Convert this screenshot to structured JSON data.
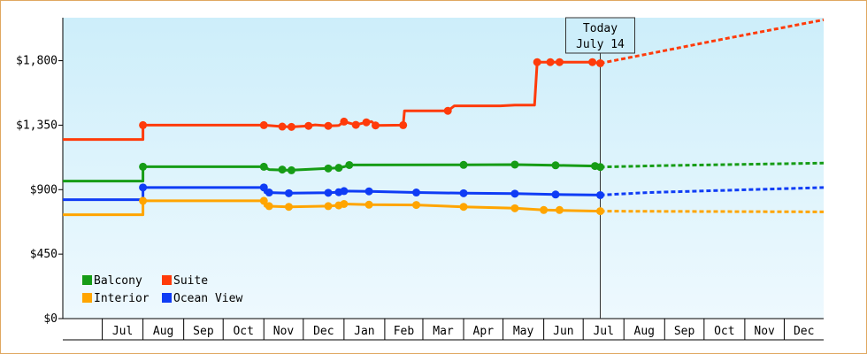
{
  "chart_data": {
    "type": "line",
    "title": "",
    "xlabel": "",
    "ylabel": "",
    "x_axis": {
      "type": "date",
      "range": [
        "2023-06-01",
        "2024-12-31"
      ]
    },
    "ylim": [
      0,
      2100
    ],
    "yticks": [
      0,
      450,
      900,
      1350,
      1800
    ],
    "ytick_labels": [
      "$0",
      "$450",
      "$900",
      "$1,350",
      "$1,800"
    ],
    "x_tick_labels": [
      {
        "date": "2023-07-01",
        "label": "Jul"
      },
      {
        "date": "2023-08-01",
        "label": "Aug"
      },
      {
        "date": "2023-09-01",
        "label": "Sep"
      },
      {
        "date": "2023-10-01",
        "label": "Oct"
      },
      {
        "date": "2023-11-01",
        "label": "Nov"
      },
      {
        "date": "2023-12-01",
        "label": "Dec"
      },
      {
        "date": "2024-01-01",
        "label": "Jan"
      },
      {
        "date": "2024-02-01",
        "label": "Feb"
      },
      {
        "date": "2024-03-01",
        "label": "Mar"
      },
      {
        "date": "2024-04-01",
        "label": "Apr"
      },
      {
        "date": "2024-05-01",
        "label": "May"
      },
      {
        "date": "2024-06-01",
        "label": "Jun"
      },
      {
        "date": "2024-07-01",
        "label": "Jul"
      },
      {
        "date": "2024-08-01",
        "label": "Aug"
      },
      {
        "date": "2024-09-01",
        "label": "Sep"
      },
      {
        "date": "2024-10-01",
        "label": "Oct"
      },
      {
        "date": "2024-11-01",
        "label": "Nov"
      },
      {
        "date": "2024-12-01",
        "label": "Dec"
      }
    ],
    "grid": false,
    "legend": {
      "placement": "bottom-left",
      "entries": [
        {
          "name": "Balcony",
          "color": "#169c16"
        },
        {
          "name": "Suite",
          "color": "#ff3b0a"
        },
        {
          "name": "Interior",
          "color": "#ffa500"
        },
        {
          "name": "Ocean View",
          "color": "#0f3cf5"
        }
      ]
    },
    "today": {
      "date": "2024-07-14",
      "label_line1": "Today",
      "label_line2": "July 14"
    },
    "series": [
      {
        "name": "Suite",
        "color": "#ff3b0a",
        "history": [
          [
            "2023-06-01",
            1250
          ],
          [
            "2023-08-01",
            1250
          ],
          [
            "2023-08-01",
            1350
          ],
          [
            "2023-11-01",
            1350
          ],
          [
            "2023-11-15",
            1340
          ],
          [
            "2023-11-22",
            1338
          ],
          [
            "2023-12-05",
            1345
          ],
          [
            "2023-12-10",
            1352
          ],
          [
            "2023-12-20",
            1345
          ],
          [
            "2023-12-28",
            1348
          ],
          [
            "2024-01-01",
            1375
          ],
          [
            "2024-01-10",
            1352
          ],
          [
            "2024-01-18",
            1370
          ],
          [
            "2024-01-22",
            1375
          ],
          [
            "2024-01-25",
            1348
          ],
          [
            "2024-02-15",
            1350
          ],
          [
            "2024-02-16",
            1450
          ],
          [
            "2024-03-20",
            1450
          ],
          [
            "2024-03-25",
            1485
          ],
          [
            "2024-04-29",
            1485
          ],
          [
            "2024-05-10",
            1490
          ],
          [
            "2024-05-25",
            1490
          ],
          [
            "2024-05-27",
            1790
          ],
          [
            "2024-06-06",
            1790
          ],
          [
            "2024-06-13",
            1790
          ],
          [
            "2024-07-08",
            1790
          ],
          [
            "2024-07-14",
            1782
          ]
        ],
        "projection": [
          [
            "2024-07-14",
            1782
          ],
          [
            "2024-09-01",
            1870
          ],
          [
            "2024-10-15",
            1950
          ],
          [
            "2024-12-31",
            2085
          ]
        ],
        "markers": [
          "2023-08-01",
          "2023-11-01",
          "2023-11-15",
          "2023-11-22",
          "2023-12-05",
          "2023-12-20",
          "2024-01-01",
          "2024-01-10",
          "2024-01-18",
          "2024-01-25",
          "2024-02-15",
          "2024-03-20",
          "2024-05-27",
          "2024-06-06",
          "2024-06-13",
          "2024-07-08",
          "2024-07-14"
        ]
      },
      {
        "name": "Balcony",
        "color": "#169c16",
        "history": [
          [
            "2023-06-01",
            960
          ],
          [
            "2023-08-01",
            960
          ],
          [
            "2023-08-01",
            1060
          ],
          [
            "2023-11-01",
            1060
          ],
          [
            "2023-11-05",
            1040
          ],
          [
            "2023-11-20",
            1035
          ],
          [
            "2023-12-01",
            1040
          ],
          [
            "2023-12-20",
            1048
          ],
          [
            "2023-12-28",
            1052
          ],
          [
            "2024-01-01",
            1060
          ],
          [
            "2024-01-05",
            1072
          ],
          [
            "2024-04-01",
            1073
          ],
          [
            "2024-05-10",
            1075
          ],
          [
            "2024-06-10",
            1070
          ],
          [
            "2024-07-10",
            1065
          ],
          [
            "2024-07-14",
            1058
          ]
        ],
        "projection": [
          [
            "2024-07-14",
            1058
          ],
          [
            "2024-09-01",
            1068
          ],
          [
            "2024-12-31",
            1085
          ]
        ],
        "markers": [
          "2023-08-01",
          "2023-11-01",
          "2023-11-15",
          "2023-11-22",
          "2023-12-20",
          "2023-12-28",
          "2024-01-05",
          "2024-04-01",
          "2024-05-10",
          "2024-06-10",
          "2024-07-10",
          "2024-07-14"
        ]
      },
      {
        "name": "Ocean View",
        "color": "#0f3cf5",
        "history": [
          [
            "2023-06-01",
            830
          ],
          [
            "2023-08-01",
            830
          ],
          [
            "2023-08-01",
            915
          ],
          [
            "2023-11-01",
            915
          ],
          [
            "2023-11-02",
            880
          ],
          [
            "2023-11-20",
            875
          ],
          [
            "2023-12-20",
            878
          ],
          [
            "2023-12-28",
            882
          ],
          [
            "2024-01-01",
            890
          ],
          [
            "2024-01-20",
            888
          ],
          [
            "2024-02-25",
            880
          ],
          [
            "2024-04-01",
            875
          ],
          [
            "2024-05-10",
            872
          ],
          [
            "2024-06-10",
            866
          ],
          [
            "2024-07-14",
            862
          ]
        ],
        "projection": [
          [
            "2024-07-14",
            862
          ],
          [
            "2024-08-20",
            880
          ],
          [
            "2024-12-31",
            915
          ]
        ],
        "markers": [
          "2023-08-01",
          "2023-11-01",
          "2023-11-05",
          "2023-11-20",
          "2023-12-20",
          "2023-12-28",
          "2024-01-01",
          "2024-01-20",
          "2024-02-25",
          "2024-04-01",
          "2024-05-10",
          "2024-06-10",
          "2024-07-14"
        ]
      },
      {
        "name": "Interior",
        "color": "#ffa500",
        "history": [
          [
            "2023-06-01",
            725
          ],
          [
            "2023-08-01",
            725
          ],
          [
            "2023-08-01",
            822
          ],
          [
            "2023-11-01",
            822
          ],
          [
            "2023-11-02",
            785
          ],
          [
            "2023-11-20",
            780
          ],
          [
            "2023-12-20",
            785
          ],
          [
            "2023-12-28",
            790
          ],
          [
            "2024-01-01",
            800
          ],
          [
            "2024-01-20",
            795
          ],
          [
            "2024-02-25",
            793
          ],
          [
            "2024-04-01",
            780
          ],
          [
            "2024-05-10",
            770
          ],
          [
            "2024-06-01",
            758
          ],
          [
            "2024-07-14",
            750
          ]
        ],
        "projection": [
          [
            "2024-07-14",
            750
          ],
          [
            "2024-12-31",
            745
          ]
        ],
        "markers": [
          "2023-08-01",
          "2023-11-01",
          "2023-11-05",
          "2023-11-20",
          "2023-12-20",
          "2023-12-28",
          "2024-01-01",
          "2024-01-20",
          "2024-02-25",
          "2024-04-01",
          "2024-05-10",
          "2024-06-01",
          "2024-06-13",
          "2024-07-14"
        ]
      }
    ]
  }
}
